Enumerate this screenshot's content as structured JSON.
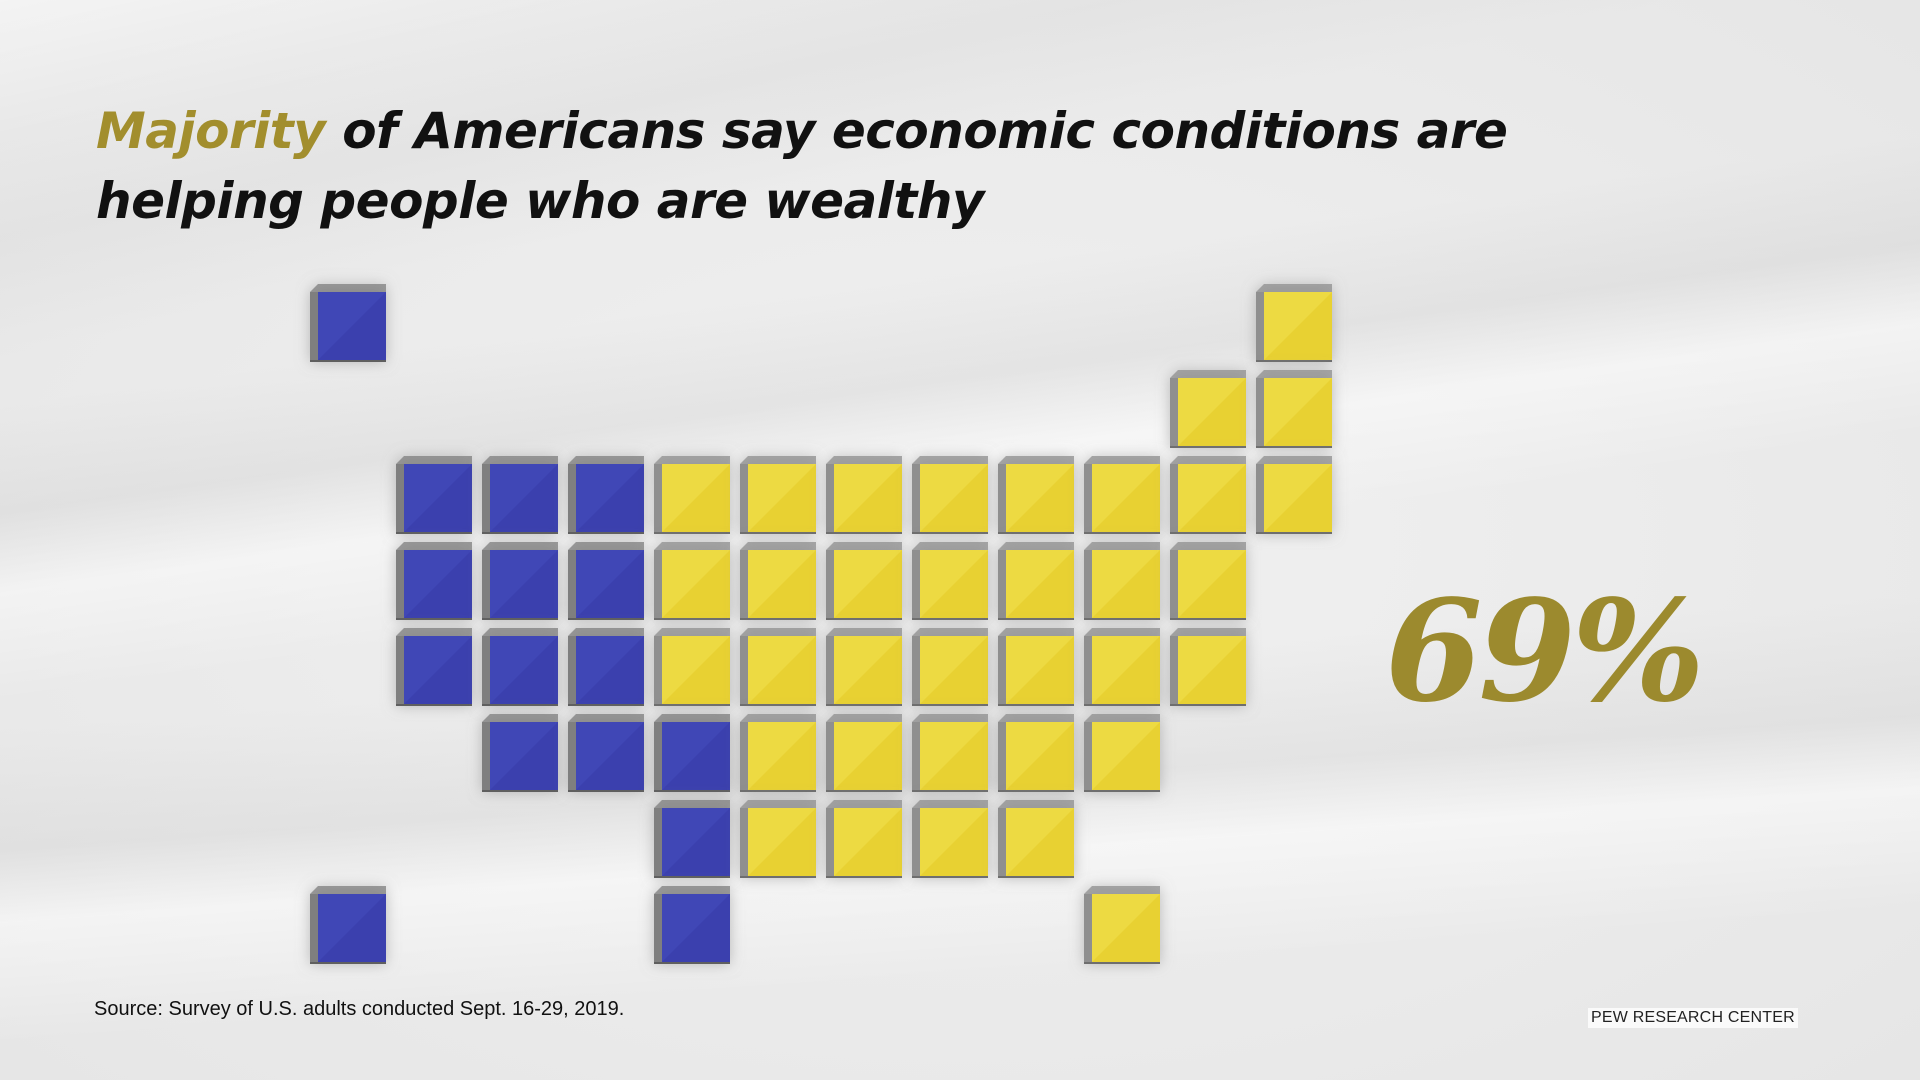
{
  "title": {
    "highlight": "Majority",
    "rest": "of Americans say economic conditions are helping people who are wealthy"
  },
  "chart_data": {
    "type": "tile-map",
    "value_label": "69%",
    "value": 69,
    "colors": {
      "yes": "#e8d131",
      "no": "#3a3fae",
      "accent": "#a28e2d"
    },
    "tiles": [
      {
        "row": 0,
        "col": 0,
        "fill": "no"
      },
      {
        "row": 0,
        "col": 11,
        "fill": "yes"
      },
      {
        "row": 1,
        "col": 10,
        "fill": "yes"
      },
      {
        "row": 1,
        "col": 11,
        "fill": "yes"
      },
      {
        "row": 2,
        "col": 1,
        "fill": "no"
      },
      {
        "row": 2,
        "col": 2,
        "fill": "no"
      },
      {
        "row": 2,
        "col": 3,
        "fill": "no"
      },
      {
        "row": 2,
        "col": 4,
        "fill": "yes"
      },
      {
        "row": 2,
        "col": 5,
        "fill": "yes"
      },
      {
        "row": 2,
        "col": 6,
        "fill": "yes"
      },
      {
        "row": 2,
        "col": 7,
        "fill": "yes"
      },
      {
        "row": 2,
        "col": 8,
        "fill": "yes"
      },
      {
        "row": 2,
        "col": 9,
        "fill": "yes"
      },
      {
        "row": 2,
        "col": 10,
        "fill": "yes"
      },
      {
        "row": 2,
        "col": 11,
        "fill": "yes"
      },
      {
        "row": 3,
        "col": 1,
        "fill": "no"
      },
      {
        "row": 3,
        "col": 2,
        "fill": "no"
      },
      {
        "row": 3,
        "col": 3,
        "fill": "no"
      },
      {
        "row": 3,
        "col": 4,
        "fill": "yes"
      },
      {
        "row": 3,
        "col": 5,
        "fill": "yes"
      },
      {
        "row": 3,
        "col": 6,
        "fill": "yes"
      },
      {
        "row": 3,
        "col": 7,
        "fill": "yes"
      },
      {
        "row": 3,
        "col": 8,
        "fill": "yes"
      },
      {
        "row": 3,
        "col": 9,
        "fill": "yes"
      },
      {
        "row": 3,
        "col": 10,
        "fill": "yes"
      },
      {
        "row": 4,
        "col": 1,
        "fill": "no"
      },
      {
        "row": 4,
        "col": 2,
        "fill": "no"
      },
      {
        "row": 4,
        "col": 3,
        "fill": "no"
      },
      {
        "row": 4,
        "col": 4,
        "fill": "yes"
      },
      {
        "row": 4,
        "col": 5,
        "fill": "yes"
      },
      {
        "row": 4,
        "col": 6,
        "fill": "yes"
      },
      {
        "row": 4,
        "col": 7,
        "fill": "yes"
      },
      {
        "row": 4,
        "col": 8,
        "fill": "yes"
      },
      {
        "row": 4,
        "col": 9,
        "fill": "yes"
      },
      {
        "row": 4,
        "col": 10,
        "fill": "yes"
      },
      {
        "row": 5,
        "col": 2,
        "fill": "no"
      },
      {
        "row": 5,
        "col": 3,
        "fill": "no"
      },
      {
        "row": 5,
        "col": 4,
        "fill": "no"
      },
      {
        "row": 5,
        "col": 5,
        "fill": "yes"
      },
      {
        "row": 5,
        "col": 6,
        "fill": "yes"
      },
      {
        "row": 5,
        "col": 7,
        "fill": "yes"
      },
      {
        "row": 5,
        "col": 8,
        "fill": "yes"
      },
      {
        "row": 5,
        "col": 9,
        "fill": "yes"
      },
      {
        "row": 6,
        "col": 4,
        "fill": "no"
      },
      {
        "row": 6,
        "col": 5,
        "fill": "yes"
      },
      {
        "row": 6,
        "col": 6,
        "fill": "yes"
      },
      {
        "row": 6,
        "col": 7,
        "fill": "yes"
      },
      {
        "row": 6,
        "col": 8,
        "fill": "yes"
      },
      {
        "row": 7,
        "col": 0,
        "fill": "no"
      },
      {
        "row": 7,
        "col": 4,
        "fill": "no"
      },
      {
        "row": 7,
        "col": 9,
        "fill": "yes"
      }
    ]
  },
  "footer": {
    "source": "Source: Survey of U.S. adults conducted Sept. 16-29, 2019.",
    "brand": "PEW RESEARCH CENTER"
  }
}
